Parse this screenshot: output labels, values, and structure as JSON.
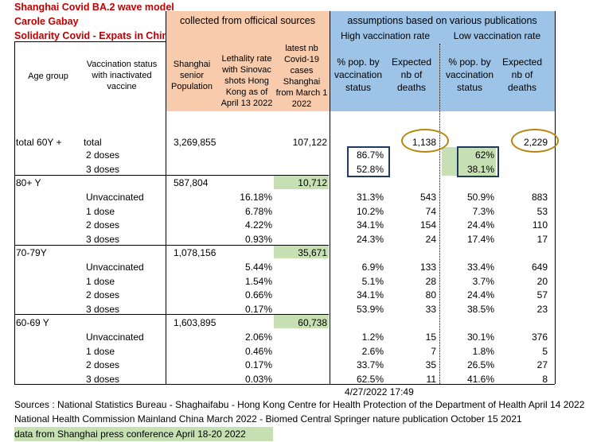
{
  "title": {
    "line1": "Shanghai Covid BA.2 wave model",
    "line2": "Carole Gabay",
    "line3": "Solidarity Covid - Expats in China"
  },
  "header": {
    "collected": "collected from officical sources",
    "assumptions": "assumptions based on various publications",
    "high_rate": "High vaccination rate",
    "low_rate": "Low vaccination rate",
    "age_group": "Age group",
    "vacc_status": "Vaccination status with inactivated vaccine",
    "senior_pop": "Shanghai senior Population",
    "lethality": "Lethality rate with Sinovac shots Hong Kong as of April 13 2022",
    "latest_cases": "latest nb Covid-19 cases Shanghai from March 1 2022",
    "pct_pop_high": "% pop. by vaccination status",
    "exp_deaths_high": "Expected nb of deaths",
    "pct_pop_low": "% pop. by vaccination status",
    "exp_deaths_low": "Expected nb of deaths"
  },
  "rows": [
    {
      "age": "total 60Y +",
      "status": "total",
      "pop": "3,269,855",
      "leth": "",
      "cases": "107,122",
      "hp": "",
      "hd": "1,138",
      "lp": "",
      "ld": "2,229"
    },
    {
      "age": "",
      "status": "2 doses",
      "pop": "",
      "leth": "",
      "cases": "",
      "hp": "86.7%",
      "hd": "",
      "lp": "62%",
      "ld": ""
    },
    {
      "age": "",
      "status": "3 doses",
      "pop": "",
      "leth": "",
      "cases": "",
      "hp": "52.8%",
      "hd": "",
      "lp": "38.1%",
      "ld": ""
    },
    {
      "age": "80+ Y",
      "status": "",
      "pop": "587,804",
      "leth": "",
      "cases": "10,712",
      "hp": "",
      "hd": "",
      "lp": "",
      "ld": ""
    },
    {
      "age": "",
      "status": "Unvaccinated",
      "pop": "",
      "leth": "16.18%",
      "cases": "",
      "hp": "31.3%",
      "hd": "543",
      "lp": "50.9%",
      "ld": "883"
    },
    {
      "age": "",
      "status": "1 dose",
      "pop": "",
      "leth": "6.78%",
      "cases": "",
      "hp": "10.2%",
      "hd": "74",
      "lp": "7.3%",
      "ld": "53"
    },
    {
      "age": "",
      "status": "2 doses",
      "pop": "",
      "leth": "4.22%",
      "cases": "",
      "hp": "34.1%",
      "hd": "154",
      "lp": "24.4%",
      "ld": "110"
    },
    {
      "age": "",
      "status": "3 doses",
      "pop": "",
      "leth": "0.93%",
      "cases": "",
      "hp": "24.3%",
      "hd": "24",
      "lp": "17.4%",
      "ld": "17"
    },
    {
      "age": "70-79Y",
      "status": "",
      "pop": "1,078,156",
      "leth": "",
      "cases": "35,671",
      "hp": "",
      "hd": "",
      "lp": "",
      "ld": ""
    },
    {
      "age": "",
      "status": "Unvaccinated",
      "pop": "",
      "leth": "5.44%",
      "cases": "",
      "hp": "6.9%",
      "hd": "133",
      "lp": "33.4%",
      "ld": "649"
    },
    {
      "age": "",
      "status": "1 dose",
      "pop": "",
      "leth": "1.54%",
      "cases": "",
      "hp": "5.1%",
      "hd": "28",
      "lp": "3.7%",
      "ld": "20"
    },
    {
      "age": "",
      "status": "2 doses",
      "pop": "",
      "leth": "0.66%",
      "cases": "",
      "hp": "34.1%",
      "hd": "80",
      "lp": "24.4%",
      "ld": "57"
    },
    {
      "age": "",
      "status": "3 doses",
      "pop": "",
      "leth": "0.17%",
      "cases": "",
      "hp": "53.9%",
      "hd": "33",
      "lp": "38.5%",
      "ld": "23"
    },
    {
      "age": "60-69 Y",
      "status": "",
      "pop": "1,603,895",
      "leth": "",
      "cases": "60,738",
      "hp": "",
      "hd": "",
      "lp": "",
      "ld": ""
    },
    {
      "age": "",
      "status": "Unvaccinated",
      "pop": "",
      "leth": "2.06%",
      "cases": "",
      "hp": "1.2%",
      "hd": "15",
      "lp": "30.1%",
      "ld": "376"
    },
    {
      "age": "",
      "status": "1 dose",
      "pop": "",
      "leth": "0.46%",
      "cases": "",
      "hp": "2.6%",
      "hd": "7",
      "lp": "1.8%",
      "ld": "5"
    },
    {
      "age": "",
      "status": "2 doses",
      "pop": "",
      "leth": "0.17%",
      "cases": "",
      "hp": "33.7%",
      "hd": "35",
      "lp": "26.5%",
      "ld": "27"
    },
    {
      "age": "",
      "status": "3 doses",
      "pop": "",
      "leth": "0.03%",
      "cases": "",
      "hp": "62.5%",
      "hd": "11",
      "lp": "41.6%",
      "ld": "8"
    }
  ],
  "timestamp": "4/27/2022 17:49",
  "footer": {
    "line1": "Sources : National Statistics Bureau - Shaghaifabu - Hong Kong Centre for Health Protection of the Department of Health April 14 2022",
    "line2": "National Health Commission Mainland China March 2022 - Biomed Central Springer nature publication October 15 2021",
    "line3": "data from Shanghai press conference April 18-20 2022"
  },
  "colors": {
    "title": "#c00000",
    "salmon": "#f8cbad",
    "blue": "#9dc3e6",
    "green": "#c6e0b4",
    "box": "#1f3864",
    "oval": "#b8860b"
  }
}
